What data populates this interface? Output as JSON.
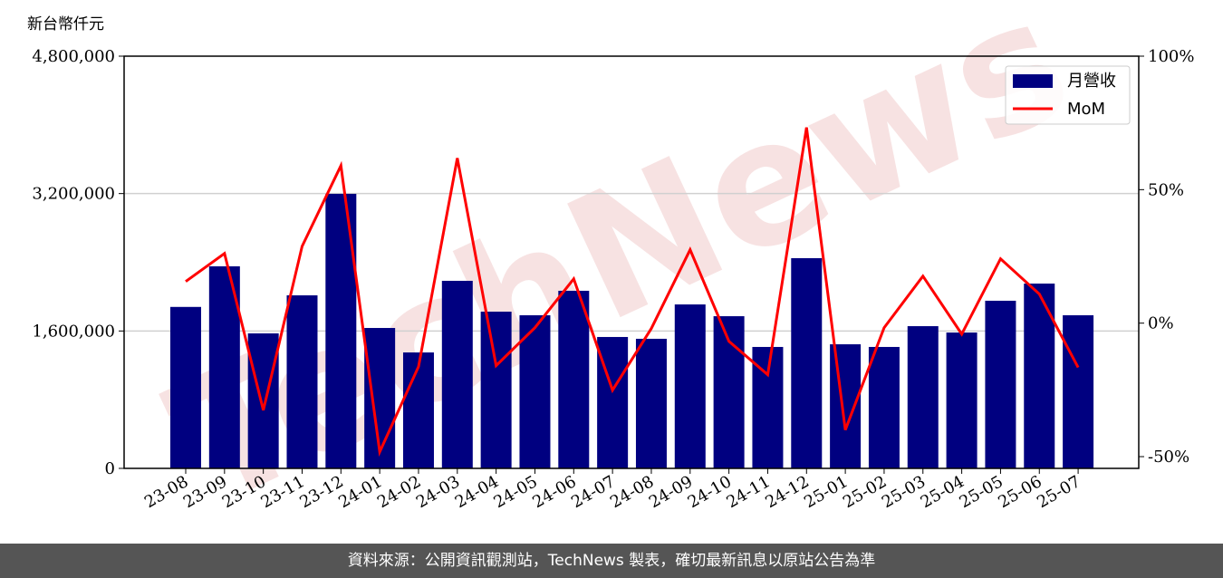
{
  "chart_data": {
    "type": "bar-line",
    "y_label": "新台幣仟元",
    "watermark": "TechNews",
    "categories": [
      "23-08",
      "23-09",
      "23-10",
      "23-11",
      "23-12",
      "24-01",
      "24-02",
      "24-03",
      "24-04",
      "24-05",
      "24-06",
      "24-07",
      "24-08",
      "24-09",
      "24-10",
      "24-11",
      "24-12",
      "25-01",
      "25-02",
      "25-03",
      "25-04",
      "25-05",
      "25-06",
      "25-07"
    ],
    "series": [
      {
        "name": "月營收",
        "type": "bar",
        "color": "#000080",
        "values": [
          1880000,
          2353000,
          1572000,
          2015000,
          3197000,
          1635000,
          1350000,
          2184000,
          1825000,
          1783000,
          2068000,
          1530000,
          1509000,
          1909000,
          1772000,
          1414000,
          2448000,
          1445000,
          1414000,
          1656000,
          1582000,
          1952000,
          2152000,
          1783000
        ]
      },
      {
        "name": "MoM",
        "type": "line",
        "axis": "y2",
        "color": "#ff0000",
        "values": [
          15.6,
          26.1,
          -32.6,
          28.8,
          59.0,
          -48.2,
          -16.3,
          61.8,
          -15.9,
          -1.7,
          16.6,
          -25.1,
          -2.0,
          27.5,
          -6.8,
          -19.3,
          73.3,
          -40.0,
          -1.7,
          17.6,
          -4.1,
          24.1,
          10.9,
          -16.6
        ]
      }
    ],
    "ylim": [
      0,
      4800000
    ],
    "yticks": [
      {
        "value": 0,
        "label": "0"
      },
      {
        "value": 1600000,
        "label": "1,600,000"
      },
      {
        "value": 3200000,
        "label": "3,200,000"
      },
      {
        "value": 4800000,
        "label": "4,800,000"
      }
    ],
    "y2lim": [
      -54.4,
      100
    ],
    "y2ticks": [
      {
        "value": -50,
        "label": "-50%"
      },
      {
        "value": 0,
        "label": "0%"
      },
      {
        "value": 50,
        "label": "50%"
      },
      {
        "value": 100,
        "label": "100%"
      }
    ],
    "grid": true,
    "legend": "upper right"
  },
  "footer": "資料來源：公開資訊觀測站，TechNews 製表，確切最新訊息以原站公告為準"
}
